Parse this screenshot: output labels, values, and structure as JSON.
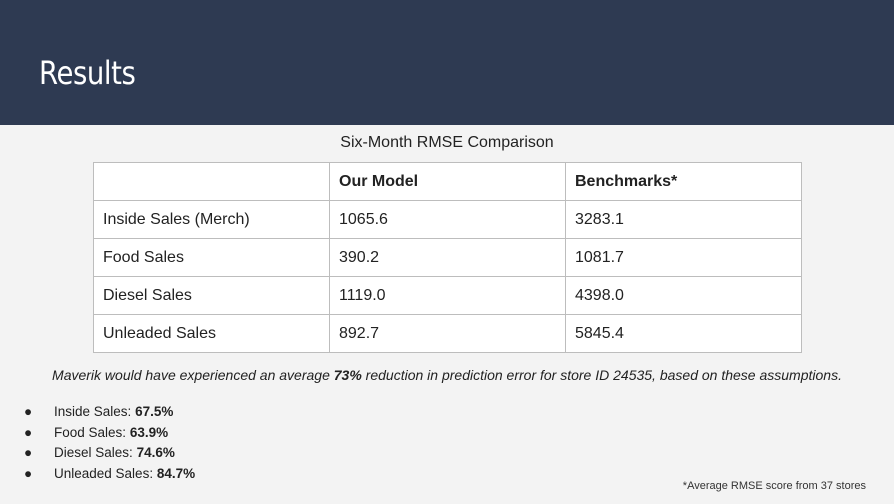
{
  "slide": {
    "title": "Results"
  },
  "table": {
    "title": "Six-Month RMSE Comparison",
    "headers": [
      "",
      "Our Model",
      "Benchmarks*"
    ],
    "rows": [
      [
        "Inside Sales (Merch)",
        "1065.6",
        "3283.1"
      ],
      [
        "Food Sales",
        "390.2",
        "1081.7"
      ],
      [
        "Diesel Sales",
        "1119.0",
        "4398.0"
      ],
      [
        "Unleaded Sales",
        "892.7",
        "5845.4"
      ]
    ]
  },
  "summary": {
    "before": "Maverik would have experienced an average ",
    "highlight": "73%",
    "after": " reduction in prediction error for store ID 24535, based on these assumptions."
  },
  "bullets": {
    "marker": "●",
    "items": [
      {
        "label": "Inside Sales: ",
        "value": "67.5%"
      },
      {
        "label": "Food Sales: ",
        "value": "63.9%"
      },
      {
        "label": "Diesel Sales: ",
        "value": "74.6%"
      },
      {
        "label": "Unleaded Sales: ",
        "value": "84.7%"
      }
    ]
  },
  "footnote": "*Average RMSE score from 37 stores"
}
